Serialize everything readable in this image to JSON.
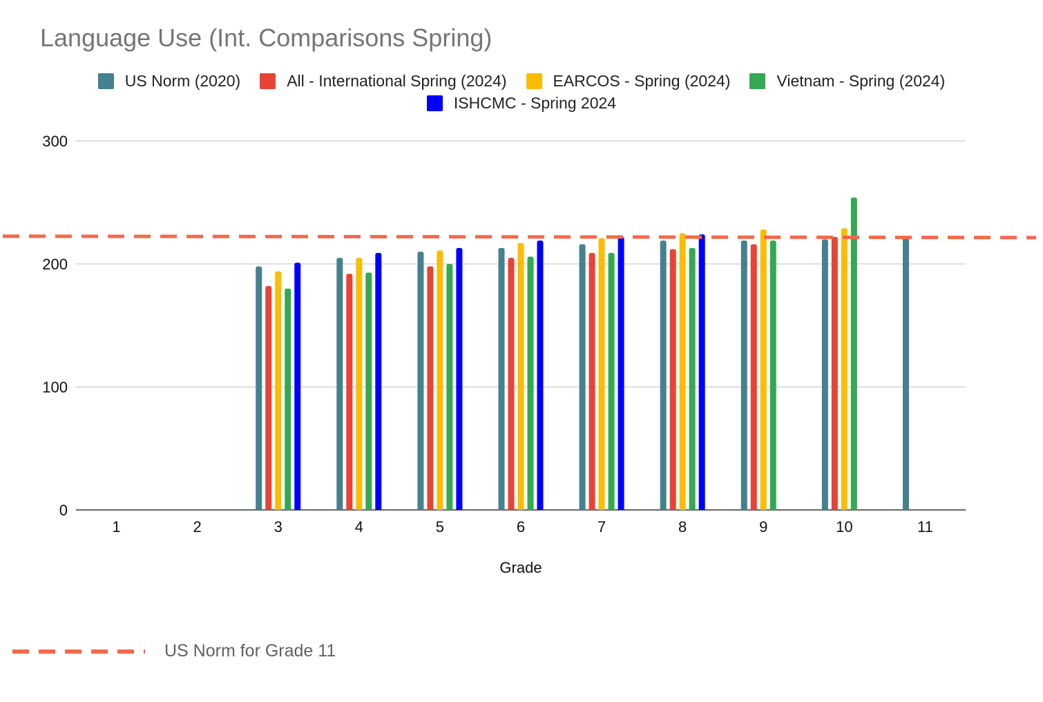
{
  "chart_data": {
    "type": "bar",
    "title": "Language Use (Int. Comparisons Spring)",
    "xlabel": "Grade",
    "ylabel": "",
    "ylim": [
      0,
      300
    ],
    "yticks": [
      0,
      100,
      200,
      300
    ],
    "grid": true,
    "legend_position": "top",
    "categories": [
      "1",
      "2",
      "3",
      "4",
      "5",
      "6",
      "7",
      "8",
      "9",
      "10",
      "11"
    ],
    "series": [
      {
        "name": "US Norm (2020)",
        "color": "#45818e",
        "values": [
          null,
          null,
          198,
          205,
          210,
          213,
          216,
          219,
          219,
          220,
          222
        ]
      },
      {
        "name": "All - International Spring (2024)",
        "color": "#ea4335",
        "values": [
          null,
          null,
          182,
          192,
          198,
          205,
          209,
          212,
          216,
          222,
          null
        ]
      },
      {
        "name": "EARCOS - Spring (2024)",
        "color": "#fbbc04",
        "values": [
          null,
          null,
          194,
          205,
          211,
          217,
          221,
          225,
          228,
          229,
          null
        ]
      },
      {
        "name": "Vietnam - Spring (2024)",
        "color": "#34a853",
        "values": [
          null,
          null,
          180,
          193,
          200,
          206,
          209,
          213,
          219,
          254,
          null
        ]
      },
      {
        "name": "ISHCMC - Spring 2024",
        "color": "#0000ff",
        "values": [
          null,
          null,
          201,
          209,
          213,
          219,
          222,
          224,
          null,
          null,
          null
        ]
      }
    ],
    "reference_line": {
      "label": "US Norm for Grade 11",
      "value": 222,
      "color": "#f4694a",
      "style": "dashed"
    }
  }
}
